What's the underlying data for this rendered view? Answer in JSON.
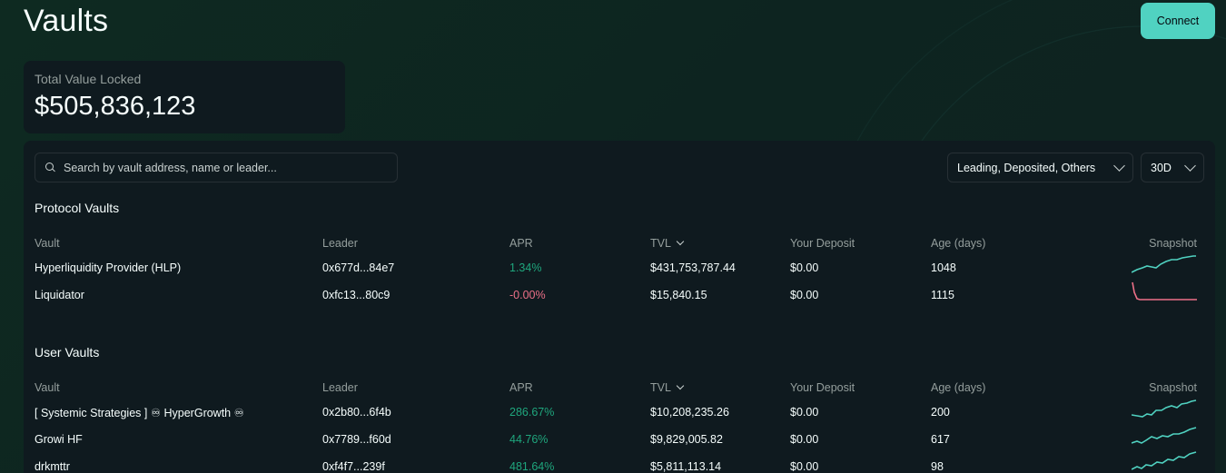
{
  "page": {
    "title": "Vaults"
  },
  "header": {
    "connect_label": "Connect"
  },
  "tvl": {
    "label": "Total Value Locked",
    "value": "$505,836,123"
  },
  "search": {
    "placeholder": "Search by vault address, name or leader..."
  },
  "filters": {
    "selection": "Leading, Deposited, Others",
    "period": "30D"
  },
  "columns": {
    "vault": "Vault",
    "leader": "Leader",
    "apr": "APR",
    "tvl": "TVL",
    "deposit": "Your Deposit",
    "age": "Age (days)",
    "snapshot": "Snapshot"
  },
  "colors": {
    "accent": "#50d2c1",
    "positive": "#1fa67d",
    "negative": "#ed7088",
    "spark_up": "#50d2c1",
    "spark_down": "#ed7088"
  },
  "protocol_vaults": {
    "title": "Protocol Vaults",
    "rows": [
      {
        "vault": "Hyperliquidity Provider (HLP)",
        "leader": "0x677d...84e7",
        "apr": "1.34%",
        "tvl": "$431,753,787.44",
        "deposit": "$0.00",
        "age": "1048",
        "trend": "up"
      },
      {
        "vault": "Liquidator",
        "leader": "0xfc13...80c9",
        "apr": "-0.00%",
        "tvl": "$15,840.15",
        "deposit": "$0.00",
        "age": "1115",
        "trend": "down"
      }
    ]
  },
  "user_vaults": {
    "title": "User Vaults",
    "rows": [
      {
        "vault": "[ Systemic Strategies ] ♾ HyperGrowth ♾",
        "leader": "0x2b80...6f4b",
        "apr": "286.67%",
        "tvl": "$10,208,235.26",
        "deposit": "$0.00",
        "age": "200",
        "trend": "up"
      },
      {
        "vault": "Growi HF",
        "leader": "0x7789...f60d",
        "apr": "44.76%",
        "tvl": "$9,829,005.82",
        "deposit": "$0.00",
        "age": "617",
        "trend": "up"
      },
      {
        "vault": "drkmttr",
        "leader": "0xf4f7...239f",
        "apr": "481.64%",
        "tvl": "$5,811,113.14",
        "deposit": "$0.00",
        "age": "98",
        "trend": "up"
      }
    ]
  }
}
